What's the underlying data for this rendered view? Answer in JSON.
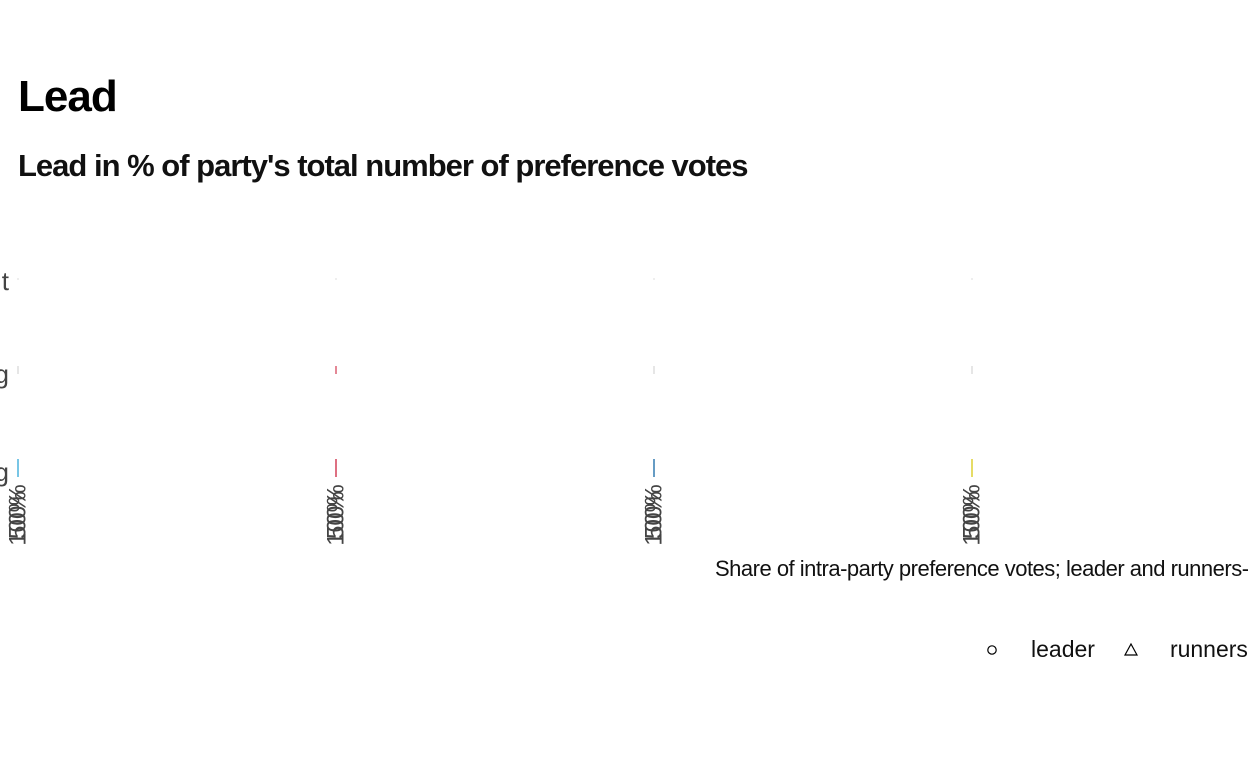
{
  "chart_data": {
    "type": "scatter",
    "title": "Lead",
    "subtitle": "Lead in % of party's total number of preference votes",
    "xlabel": "Share of intra-party preference votes; leader and runners-up",
    "ylabel": "",
    "facets": 4,
    "facet_colors": [
      "#1f9fd6",
      "#c8102e",
      "#005a9c",
      "#d4c400"
    ],
    "x_tick_labels": [
      "100%",
      "50%"
    ],
    "y_category_fragments": [
      "t",
      "g",
      "g"
    ],
    "grid": false,
    "legend": {
      "position": "bottom-right",
      "items": [
        {
          "label": "leader",
          "shape": "circle"
        },
        {
          "label": "runners-up",
          "shape": "triangle"
        }
      ]
    },
    "series": [
      {
        "name": "leader",
        "shape": "circle",
        "values": []
      },
      {
        "name": "runners-up",
        "shape": "triangle",
        "values": []
      }
    ]
  }
}
